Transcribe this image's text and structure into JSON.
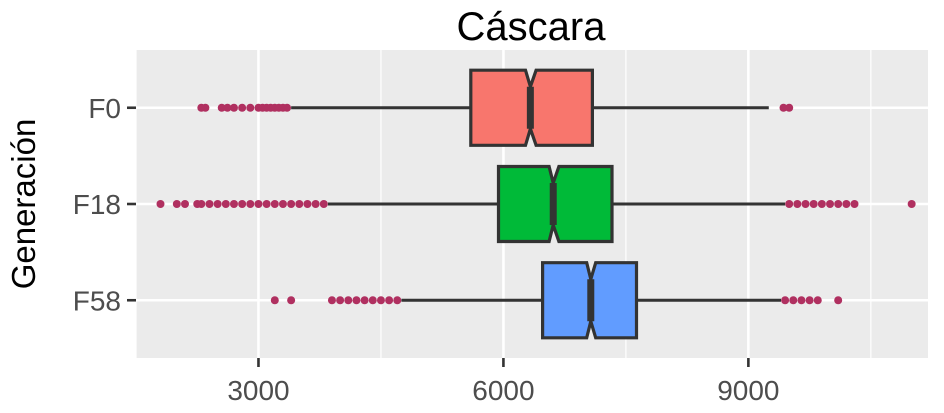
{
  "chart_data": {
    "type": "boxplot",
    "orientation": "horizontal",
    "title": "Cáscara",
    "xlabel": "",
    "ylabel": "Generación",
    "xlim": [
      1500,
      11200
    ],
    "x_ticks": [
      3000,
      6000,
      9000
    ],
    "x_tick_labels": [
      "3000",
      "6000",
      "9000"
    ],
    "grid": true,
    "legend": "none",
    "outlier_color": "#b03060",
    "box_edge_color": "#333333",
    "panel_background": "#ebebeb",
    "groups": [
      {
        "name": "F0",
        "color": "#f8766d",
        "q1": 5600,
        "median": 6330,
        "q3": 7090,
        "notch_low": 6270,
        "notch_high": 6400,
        "whisker_low": 3400,
        "whisker_high": 9250,
        "outliers": [
          2300,
          2350,
          2550,
          2620,
          2700,
          2800,
          2900,
          3000,
          3050,
          3100,
          3150,
          3200,
          3250,
          3300,
          3350,
          9430,
          9500
        ]
      },
      {
        "name": "F18",
        "color": "#00ba38",
        "q1": 5940,
        "median": 6610,
        "q3": 7330,
        "notch_low": 6560,
        "notch_high": 6680,
        "whisker_low": 3850,
        "whisker_high": 9450,
        "outliers": [
          1800,
          2000,
          2100,
          2250,
          2300,
          2400,
          2500,
          2600,
          2700,
          2800,
          2900,
          3000,
          3100,
          3200,
          3300,
          3400,
          3500,
          3600,
          3700,
          3800,
          9500,
          9600,
          9700,
          9800,
          9900,
          10000,
          10100,
          10200,
          10300,
          11000
        ]
      },
      {
        "name": "F58",
        "color": "#619cff",
        "q1": 6480,
        "median": 7070,
        "q3": 7630,
        "notch_low": 7020,
        "notch_high": 7130,
        "whisker_low": 4750,
        "whisker_high": 9400,
        "outliers": [
          3200,
          3400,
          3900,
          4000,
          4100,
          4200,
          4300,
          4400,
          4500,
          4600,
          4700,
          9450,
          9550,
          9650,
          9750,
          9850,
          10100
        ]
      }
    ]
  }
}
